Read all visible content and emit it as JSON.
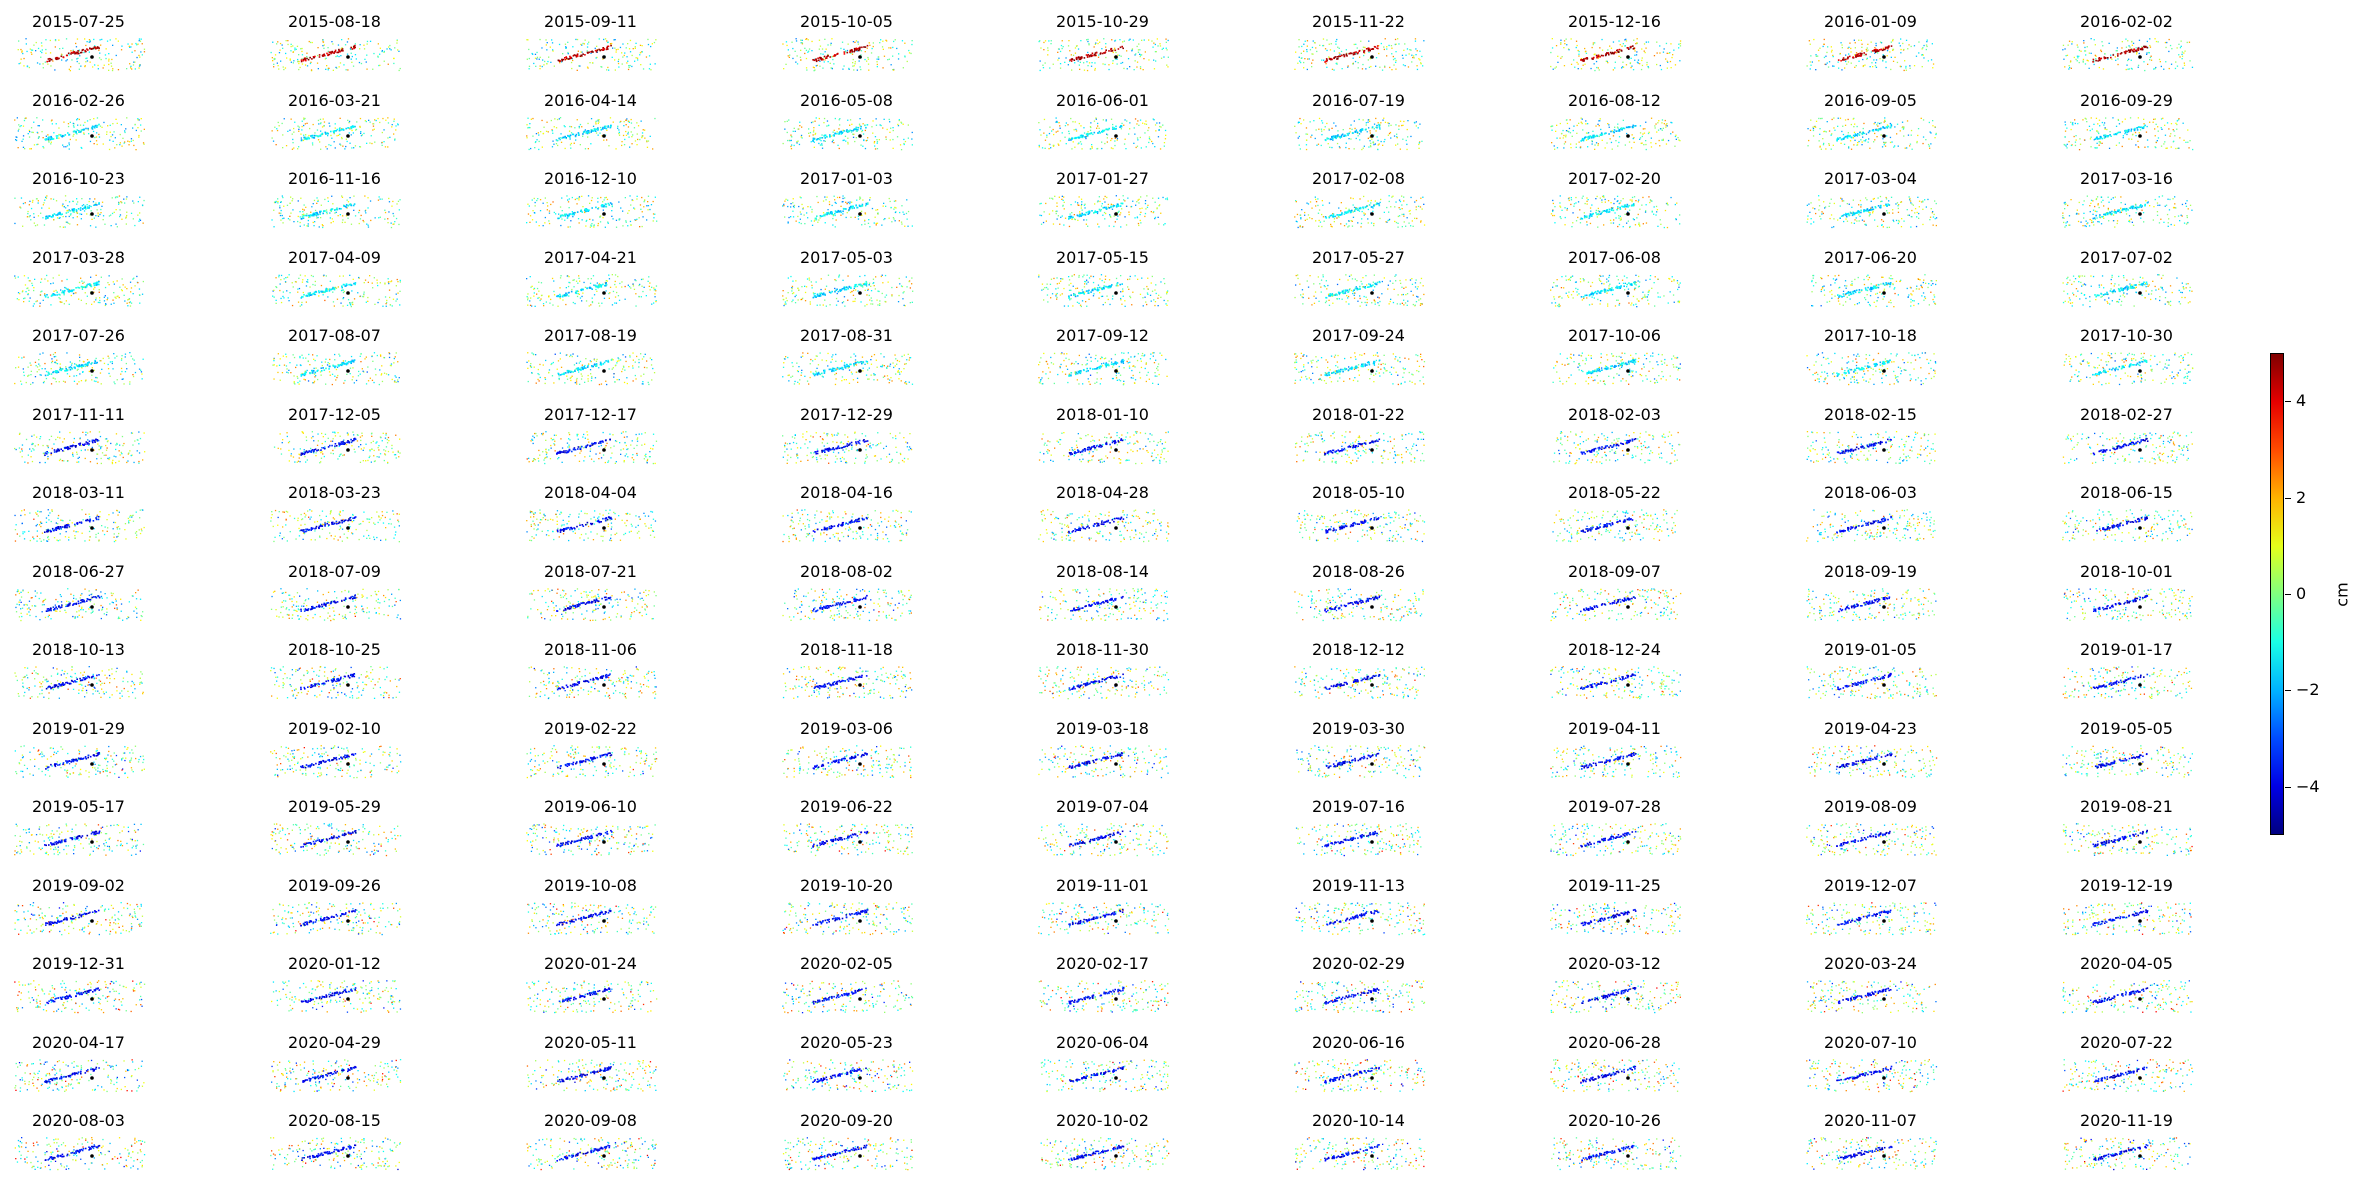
{
  "chart_data": {
    "type": "scatter",
    "description_kind": "small-multiples",
    "colormap": "jet",
    "colorbar": {
      "label": "cm",
      "vmin": -5,
      "vmax": 5,
      "ticks": [
        4,
        2,
        0,
        -2,
        -4
      ],
      "tick_labels": [
        "4",
        "2",
        "0",
        "−2",
        "−4"
      ]
    },
    "dates": [
      "2015-07-25",
      "2015-08-18",
      "2015-09-11",
      "2015-10-05",
      "2015-10-29",
      "2015-11-22",
      "2015-12-16",
      "2016-01-09",
      "2016-02-02",
      "2016-02-26",
      "2016-03-21",
      "2016-04-14",
      "2016-05-08",
      "2016-06-01",
      "2016-07-19",
      "2016-08-12",
      "2016-09-05",
      "2016-09-29",
      "2016-10-23",
      "2016-11-16",
      "2016-12-10",
      "2017-01-03",
      "2017-01-27",
      "2017-02-08",
      "2017-02-20",
      "2017-03-04",
      "2017-03-16",
      "2017-03-28",
      "2017-04-09",
      "2017-04-21",
      "2017-05-03",
      "2017-05-15",
      "2017-05-27",
      "2017-06-08",
      "2017-06-20",
      "2017-07-02",
      "2017-07-26",
      "2017-08-07",
      "2017-08-19",
      "2017-08-31",
      "2017-09-12",
      "2017-09-24",
      "2017-10-06",
      "2017-10-18",
      "2017-10-30",
      "2017-11-11",
      "2017-12-05",
      "2017-12-17",
      "2017-12-29",
      "2018-01-10",
      "2018-01-22",
      "2018-02-03",
      "2018-02-15",
      "2018-02-27",
      "2018-03-11",
      "2018-03-23",
      "2018-04-04",
      "2018-04-16",
      "2018-04-28",
      "2018-05-10",
      "2018-05-22",
      "2018-06-03",
      "2018-06-15",
      "2018-06-27",
      "2018-07-09",
      "2018-07-21",
      "2018-08-02",
      "2018-08-14",
      "2018-08-26",
      "2018-09-07",
      "2018-09-19",
      "2018-10-01",
      "2018-10-13",
      "2018-10-25",
      "2018-11-06",
      "2018-11-18",
      "2018-11-30",
      "2018-12-12",
      "2018-12-24",
      "2019-01-05",
      "2019-01-17",
      "2019-01-29",
      "2019-02-10",
      "2019-02-22",
      "2019-03-06",
      "2019-03-18",
      "2019-03-30",
      "2019-04-11",
      "2019-04-23",
      "2019-05-05",
      "2019-05-17",
      "2019-05-29",
      "2019-06-10",
      "2019-06-22",
      "2019-07-04",
      "2019-07-16",
      "2019-07-28",
      "2019-08-09",
      "2019-08-21",
      "2019-09-02",
      "2019-09-26",
      "2019-10-08",
      "2019-10-20",
      "2019-11-01",
      "2019-11-13",
      "2019-11-25",
      "2019-12-07",
      "2019-12-19",
      "2019-12-31",
      "2020-01-12",
      "2020-01-24",
      "2020-02-05",
      "2020-02-17",
      "2020-02-29",
      "2020-03-12",
      "2020-03-24",
      "2020-04-05",
      "2020-04-17",
      "2020-04-29",
      "2020-05-11",
      "2020-05-23",
      "2020-06-04",
      "2020-06-16",
      "2020-06-28",
      "2020-07-10",
      "2020-07-22",
      "2020-08-03",
      "2020-08-15",
      "2020-09-08",
      "2020-09-20",
      "2020-10-02",
      "2020-10-14",
      "2020-10-26",
      "2020-11-07",
      "2020-11-19"
    ],
    "reference_point_color": "#000000"
  }
}
